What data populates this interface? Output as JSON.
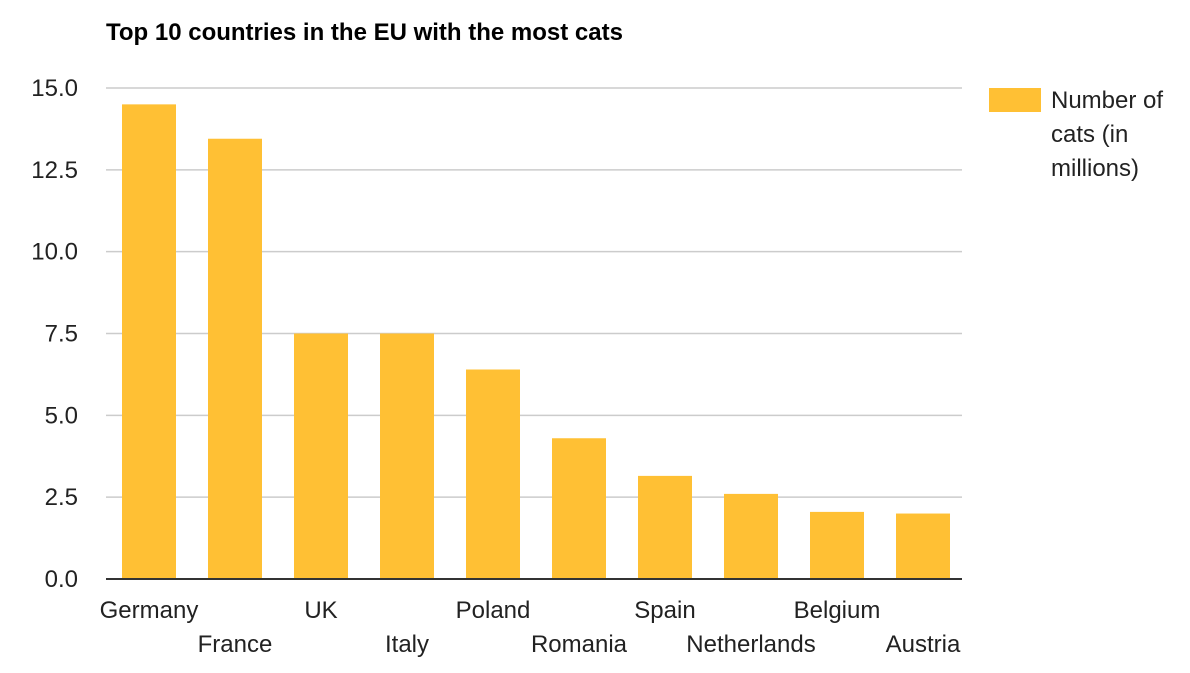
{
  "chart_data": {
    "type": "bar",
    "title": "Top 10 countries in the EU with the most cats",
    "categories": [
      "Germany",
      "France",
      "UK",
      "Italy",
      "Poland",
      "Romania",
      "Spain",
      "Netherlands",
      "Belgium",
      "Austria"
    ],
    "series": [
      {
        "name": "Number of cats (in millions)",
        "values": [
          14.5,
          13.45,
          7.5,
          7.5,
          6.4,
          4.3,
          3.15,
          2.6,
          2.05,
          2.0
        ],
        "color": "#ffc034"
      }
    ],
    "xlabel": "",
    "ylabel": "",
    "ylim": [
      0,
      15
    ],
    "yticks": [
      "0.0",
      "2.5",
      "5.0",
      "7.5",
      "10.0",
      "12.5",
      "15.0"
    ],
    "grid": true,
    "legend": {
      "position": "right",
      "lines": [
        "Number of",
        "cats (in",
        "millions)"
      ]
    },
    "colors": {
      "bar": "#ffc034",
      "grid": "#cccccc",
      "baseline": "#333333"
    }
  }
}
